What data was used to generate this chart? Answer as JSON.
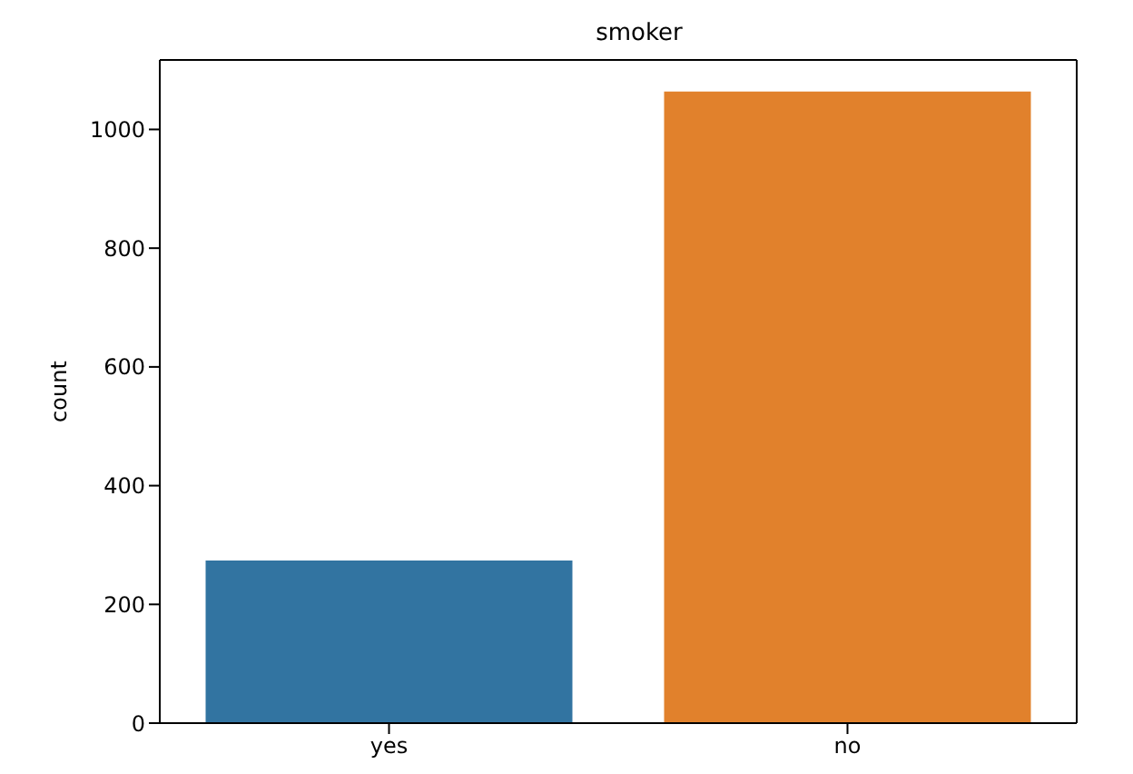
{
  "chart_data": {
    "type": "bar",
    "title": "smoker",
    "ylabel": "count",
    "categories": [
      "yes",
      "no"
    ],
    "values": [
      274,
      1064
    ],
    "colors": [
      "#3274a1",
      "#e1812c"
    ],
    "ylim": [
      0,
      1117
    ],
    "yticks": [
      0,
      200,
      400,
      600,
      800,
      1000
    ]
  }
}
